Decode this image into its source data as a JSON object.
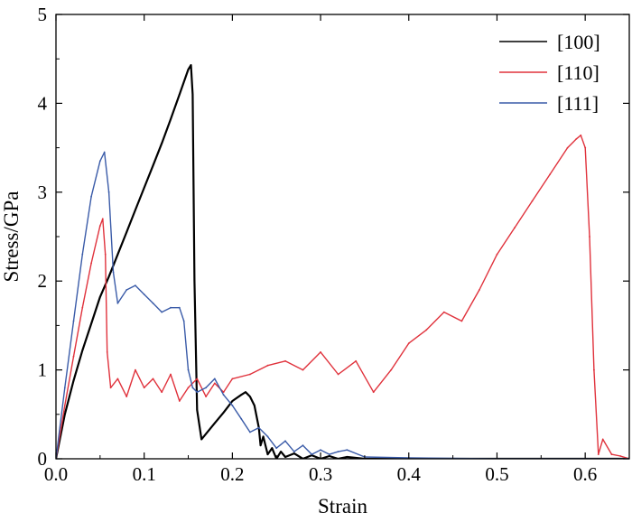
{
  "chart_data": {
    "type": "line",
    "title": "",
    "xlabel": "Strain",
    "ylabel": "Stress/GPa",
    "xlim": [
      0,
      0.65
    ],
    "ylim": [
      0,
      5
    ],
    "xticks": [
      0.0,
      0.1,
      0.2,
      0.3,
      0.4,
      0.5,
      0.6
    ],
    "xtick_labels": [
      "0.0",
      "0.1",
      "0.2",
      "0.3",
      "0.4",
      "0.5",
      "0.6"
    ],
    "yticks": [
      0,
      1,
      2,
      3,
      4,
      5
    ],
    "ytick_labels": [
      "0",
      "1",
      "2",
      "3",
      "4",
      "5"
    ],
    "grid": false,
    "legend_position": "top-right",
    "series": [
      {
        "name": "[100]",
        "color": "#000000",
        "x": [
          0,
          0.005,
          0.01,
          0.02,
          0.03,
          0.04,
          0.05,
          0.06,
          0.07,
          0.08,
          0.09,
          0.1,
          0.11,
          0.12,
          0.13,
          0.14,
          0.15,
          0.153,
          0.155,
          0.157,
          0.16,
          0.165,
          0.17,
          0.18,
          0.19,
          0.2,
          0.21,
          0.215,
          0.22,
          0.225,
          0.23,
          0.232,
          0.235,
          0.24,
          0.245,
          0.25,
          0.255,
          0.26,
          0.27,
          0.28,
          0.29,
          0.3,
          0.31,
          0.32,
          0.33,
          0.35,
          0.4,
          0.5,
          0.6,
          0.65
        ],
        "y": [
          0,
          0.25,
          0.5,
          0.88,
          1.22,
          1.52,
          1.82,
          2.05,
          2.3,
          2.55,
          2.8,
          3.05,
          3.3,
          3.55,
          3.82,
          4.1,
          4.38,
          4.43,
          4.1,
          2.0,
          0.55,
          0.22,
          0.28,
          0.4,
          0.52,
          0.65,
          0.72,
          0.75,
          0.7,
          0.6,
          0.35,
          0.15,
          0.25,
          0.05,
          0.12,
          0.0,
          0.08,
          0.02,
          0.06,
          0.0,
          0.04,
          0.0,
          0.03,
          0.0,
          0.02,
          0.0,
          0.0,
          0.0,
          0.0,
          0.0
        ]
      },
      {
        "name": "[110]",
        "color": "#e0323c",
        "x": [
          0,
          0.01,
          0.02,
          0.03,
          0.04,
          0.05,
          0.053,
          0.056,
          0.058,
          0.062,
          0.07,
          0.08,
          0.09,
          0.1,
          0.11,
          0.12,
          0.13,
          0.14,
          0.15,
          0.16,
          0.17,
          0.18,
          0.19,
          0.2,
          0.22,
          0.24,
          0.26,
          0.28,
          0.3,
          0.32,
          0.34,
          0.36,
          0.38,
          0.4,
          0.42,
          0.44,
          0.46,
          0.48,
          0.5,
          0.52,
          0.54,
          0.56,
          0.58,
          0.59,
          0.595,
          0.6,
          0.605,
          0.61,
          0.615,
          0.62,
          0.63,
          0.64,
          0.65
        ],
        "y": [
          0,
          0.6,
          1.15,
          1.7,
          2.2,
          2.62,
          2.7,
          2.3,
          1.2,
          0.8,
          0.9,
          0.7,
          1.0,
          0.8,
          0.9,
          0.75,
          0.95,
          0.65,
          0.8,
          0.9,
          0.7,
          0.85,
          0.75,
          0.9,
          0.95,
          1.05,
          1.1,
          1.0,
          1.2,
          0.95,
          1.1,
          0.75,
          1.0,
          1.3,
          1.45,
          1.65,
          1.55,
          1.9,
          2.3,
          2.6,
          2.9,
          3.2,
          3.5,
          3.6,
          3.64,
          3.5,
          2.5,
          1.0,
          0.05,
          0.22,
          0.05,
          0.03,
          0.0
        ]
      },
      {
        "name": "[111]",
        "color": "#3a5ba8",
        "x": [
          0,
          0.01,
          0.02,
          0.03,
          0.04,
          0.05,
          0.055,
          0.06,
          0.065,
          0.07,
          0.08,
          0.09,
          0.1,
          0.11,
          0.12,
          0.13,
          0.14,
          0.145,
          0.15,
          0.155,
          0.16,
          0.17,
          0.18,
          0.19,
          0.2,
          0.21,
          0.22,
          0.23,
          0.24,
          0.25,
          0.26,
          0.27,
          0.28,
          0.29,
          0.3,
          0.31,
          0.32,
          0.33,
          0.35,
          0.4,
          0.5,
          0.6,
          0.65
        ],
        "y": [
          0,
          0.8,
          1.55,
          2.3,
          2.95,
          3.35,
          3.45,
          3.0,
          2.1,
          1.75,
          1.9,
          1.95,
          1.85,
          1.75,
          1.65,
          1.7,
          1.7,
          1.55,
          1.0,
          0.8,
          0.75,
          0.8,
          0.9,
          0.72,
          0.6,
          0.45,
          0.3,
          0.35,
          0.25,
          0.12,
          0.2,
          0.08,
          0.15,
          0.05,
          0.1,
          0.05,
          0.08,
          0.1,
          0.02,
          0.01,
          0.0,
          0.0,
          0.0
        ]
      }
    ]
  }
}
